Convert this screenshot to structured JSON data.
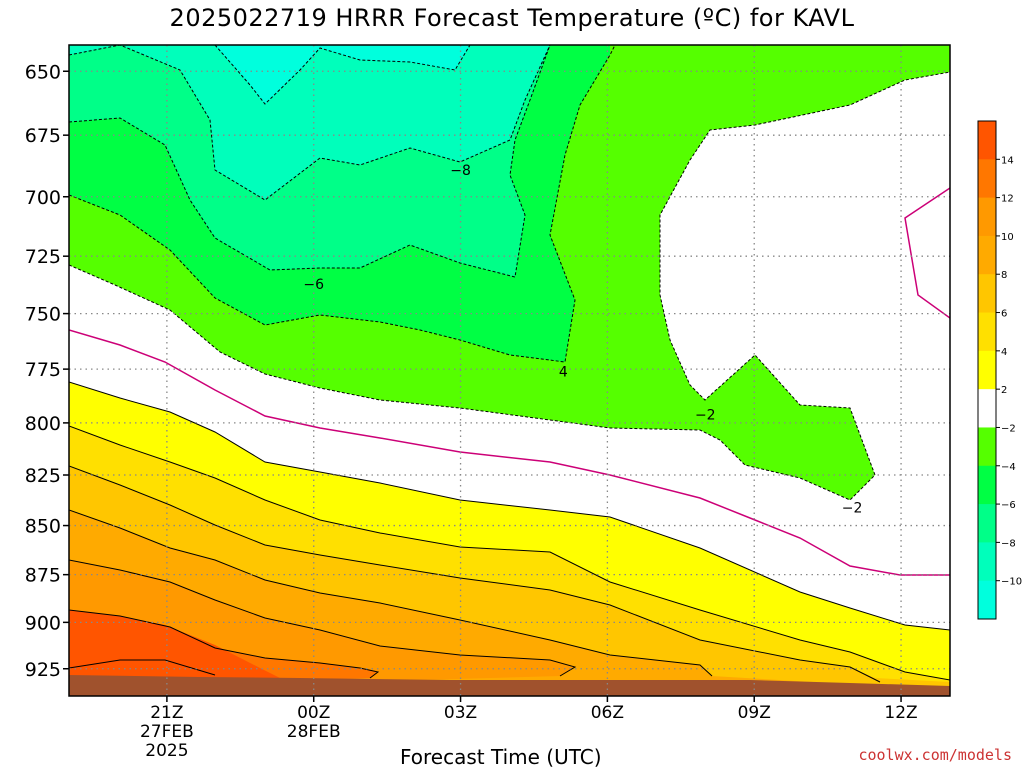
{
  "title": "2025022719 HRRR Forecast Temperature (ºC) for KAVL",
  "credit": "coolwx.com/models",
  "chart_data": {
    "type": "contour",
    "title": "2025022719 HRRR Forecast Temperature (ºC) for KAVL",
    "xlabel": "Forecast Time (UTC)",
    "ylabel": "",
    "xlim": [
      19,
      37
    ],
    "ylim": [
      640,
      940
    ],
    "y_scale": "log-pressure (inverted)",
    "y_ticks": [
      650,
      675,
      700,
      725,
      750,
      775,
      800,
      825,
      850,
      875,
      900,
      925
    ],
    "x_ticks": [
      {
        "x": 21,
        "label": "21Z",
        "sub": [
          "27FEB",
          "2025"
        ]
      },
      {
        "x": 24,
        "label": "00Z",
        "sub": [
          "28FEB"
        ]
      },
      {
        "x": 27,
        "label": "03Z",
        "sub": []
      },
      {
        "x": 30,
        "label": "06Z",
        "sub": []
      },
      {
        "x": 33,
        "label": "09Z",
        "sub": []
      },
      {
        "x": 36,
        "label": "12Z",
        "sub": []
      }
    ],
    "grid": true,
    "contour_labels": [
      {
        "text": "−8",
        "x": 27.0,
        "p": 689
      },
      {
        "text": "−6",
        "x": 24.0,
        "p": 737
      },
      {
        "text": "4",
        "x": 29.1,
        "p": 776
      },
      {
        "text": "−2",
        "x": 32.0,
        "p": 796
      },
      {
        "text": "−2",
        "x": 35.0,
        "p": 841
      }
    ],
    "colorbar": {
      "labels": [
        "14",
        "12",
        "10",
        "8",
        "6",
        "4",
        "2",
        "−2",
        "−4",
        "−6",
        "−8",
        "−10"
      ],
      "colors": [
        "#ff5500",
        "#ff7700",
        "#ff9900",
        "#ffaa00",
        "#ffc600",
        "#ffe000",
        "#ffff00",
        "#ffffff",
        "#55ff00",
        "#00ff44",
        "#00ff88",
        "#00ffbb",
        "#00ffdd"
      ]
    },
    "fills": {
      "ground": "#a0522d",
      "freezing_line": "#cc0077"
    }
  }
}
